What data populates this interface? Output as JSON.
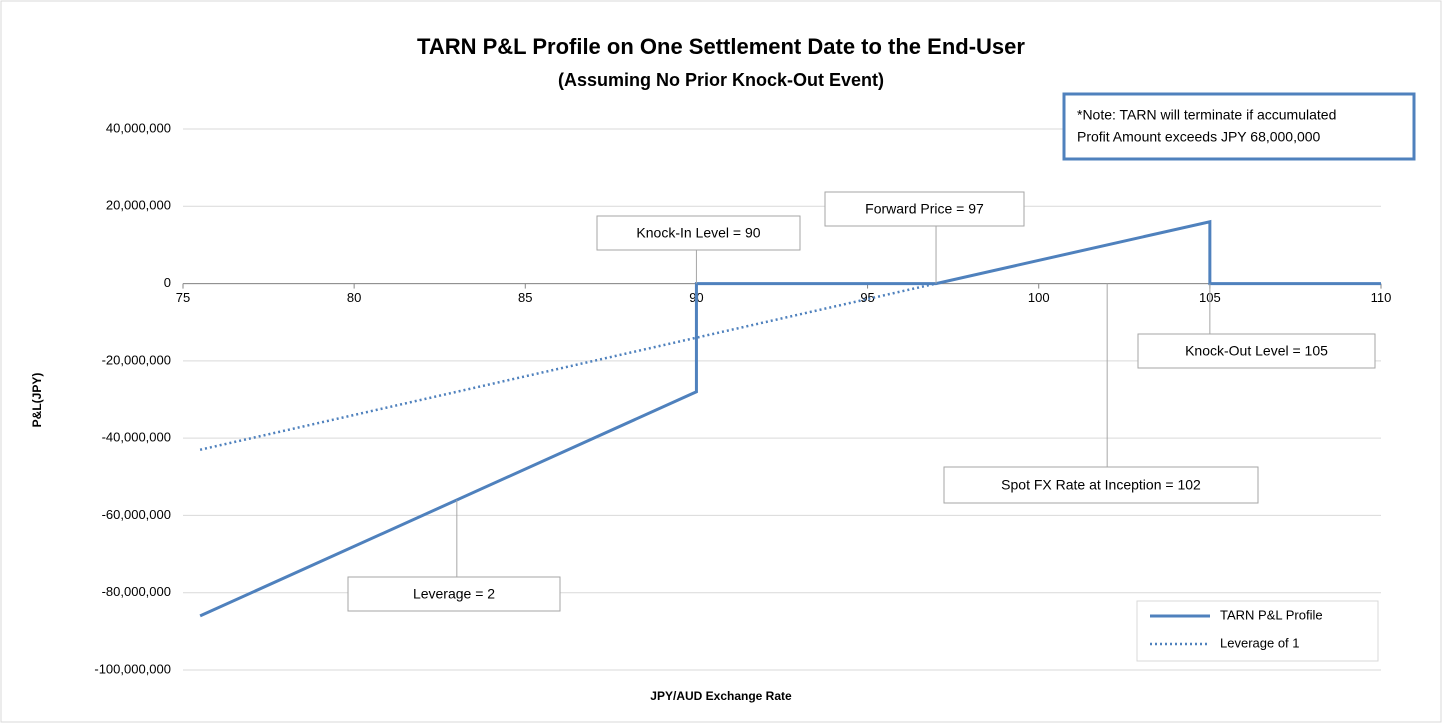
{
  "chart_data": {
    "type": "line",
    "title": "TARN P&L Profile on One Settlement Date to the End-User",
    "subtitle": "(Assuming No Prior Knock-Out Event)",
    "x_label": "JPY/AUD Exchange Rate",
    "y_label": "P&L(JPY)",
    "series": [
      {
        "name": "TARN P&L Profile",
        "color": "#4f81bd",
        "style": "solid",
        "x": [
          75.5,
          90,
          90,
          97,
          105,
          105,
          110
        ],
        "values": [
          -86000000,
          -28000000,
          0,
          0,
          16000000,
          0,
          0
        ]
      },
      {
        "name": "Leverage of 1",
        "color": "#4f81bd",
        "style": "dotted",
        "x": [
          75.5,
          97
        ],
        "values": [
          -43000000,
          0
        ]
      }
    ],
    "xlim": [
      75,
      110
    ],
    "xticks": [
      75,
      80,
      85,
      90,
      95,
      100,
      105,
      110
    ],
    "ylim": [
      -100000000,
      40000000
    ],
    "yticks": [
      {
        "value": -100000000,
        "label": "-100,000,000"
      },
      {
        "value": -80000000,
        "label": "-80,000,000"
      },
      {
        "value": -60000000,
        "label": "-60,000,000"
      },
      {
        "value": -40000000,
        "label": "-40,000,000"
      },
      {
        "value": -20000000,
        "label": "-20,000,000"
      },
      0,
      {
        "value": 20000000,
        "label": "20,000,000"
      },
      {
        "value": 40000000,
        "label": "40,000,000"
      }
    ],
    "grid": true,
    "legend": "lower right",
    "annotations": [
      "Knock-In Level = 90",
      "Forward Price = 97",
      "Knock-Out Level = 105",
      "Spot FX Rate at Inception = 102",
      "Leverage = 2"
    ],
    "note": [
      "*Note: TARN will terminate if accumulated",
      "Profit Amount exceeds JPY 68,000,000"
    ]
  }
}
